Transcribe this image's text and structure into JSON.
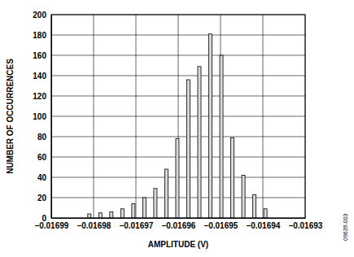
{
  "chart_data": {
    "type": "bar",
    "x_label": "AMPLITUDE (V)",
    "y_label": "NUMBER OF OCCURRENCES",
    "annotation": "09639-003",
    "x": [
      -0.016981,
      -0.0169784,
      -0.0169758,
      -0.0169732,
      -0.0169706,
      -0.016968,
      -0.0169654,
      -0.0169628,
      -0.0169602,
      -0.0169576,
      -0.016955,
      -0.0169524,
      -0.0169498,
      -0.0169472,
      -0.0169446,
      -0.016942,
      -0.0169394
    ],
    "values": [
      4,
      5,
      6,
      9,
      14,
      20,
      29,
      48,
      78,
      136,
      149,
      181,
      160,
      79,
      42,
      23,
      9
    ],
    "color": "#d9d9d9",
    "xlim": [
      -0.01699,
      -0.01693
    ],
    "xticks": [
      {
        "value": -0.01699,
        "label": "–0.01699"
      },
      {
        "value": -0.01698,
        "label": "–0.01698"
      },
      {
        "value": -0.01697,
        "label": "–0.01697"
      },
      {
        "value": -0.01696,
        "label": "–0.01696"
      },
      {
        "value": -0.01695,
        "label": "–0.01695"
      },
      {
        "value": -0.01694,
        "label": "–0.01694"
      },
      {
        "value": -0.01693,
        "label": "–0.01693"
      }
    ],
    "ylim": [
      0,
      200
    ],
    "yticks": [
      0,
      20,
      40,
      60,
      80,
      100,
      120,
      140,
      160,
      180,
      200
    ],
    "grid": true
  }
}
